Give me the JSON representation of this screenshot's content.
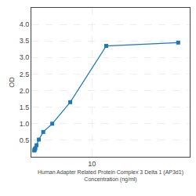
{
  "chart_data": {
    "type": "line",
    "x": [
      0.0,
      0.05,
      0.1,
      0.2,
      0.4,
      0.8,
      1.5625,
      3.125,
      6.25,
      12.5,
      25
    ],
    "values": [
      0.19,
      0.21,
      0.23,
      0.26,
      0.35,
      0.52,
      0.75,
      1.0,
      1.65,
      3.35,
      3.45
    ],
    "xlabel": "Human Adapter Related Protein Complex 3 Delta 1 (AP3d1)\nConcentration (ng/ml)",
    "ylabel": "OD",
    "xlim": [
      -0.5,
      27
    ],
    "ylim": [
      0,
      4.5
    ],
    "xticks": [
      10
    ],
    "yticks": [
      0.5,
      {
        "value": 1,
        "label": "1.0"
      },
      1.5,
      {
        "value": 2,
        "label": "2.0"
      },
      2.5,
      {
        "value": 3,
        "label": "3.0"
      },
      3.5,
      {
        "value": 4,
        "label": "4.0"
      }
    ],
    "grid": true,
    "marker": "square"
  }
}
